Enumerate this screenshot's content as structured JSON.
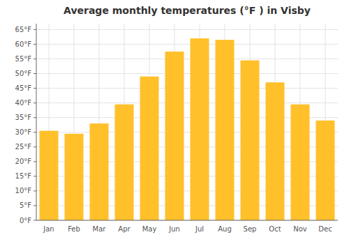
{
  "chart_data": {
    "type": "bar",
    "title": "Average monthly temperatures (°F ) in Visby",
    "categories": [
      "Jan",
      "Feb",
      "Mar",
      "Apr",
      "May",
      "Jun",
      "Jul",
      "Aug",
      "Sep",
      "Oct",
      "Nov",
      "Dec"
    ],
    "values": [
      30.5,
      29.5,
      33.0,
      39.5,
      49.0,
      57.5,
      62.0,
      61.5,
      54.5,
      47.0,
      39.5,
      34.0
    ],
    "color": "#FFC02A",
    "ylim": [
      0,
      67
    ],
    "yticks": [
      {
        "value": 0,
        "label": "0°F"
      },
      {
        "value": 5,
        "label": "5°F"
      },
      {
        "value": 10,
        "label": "10°F"
      },
      {
        "value": 15,
        "label": "15°F"
      },
      {
        "value": 20,
        "label": "20°F"
      },
      {
        "value": 25,
        "label": "25°F"
      },
      {
        "value": 30,
        "label": "30°F"
      },
      {
        "value": 35,
        "label": "35°F"
      },
      {
        "value": 40,
        "label": "40°F"
      },
      {
        "value": 45,
        "label": "45°F"
      },
      {
        "value": 50,
        "label": "50°F"
      },
      {
        "value": 55,
        "label": "55°F"
      },
      {
        "value": 60,
        "label": "60°F"
      },
      {
        "value": 65,
        "label": "65°F"
      }
    ],
    "grid": true
  }
}
